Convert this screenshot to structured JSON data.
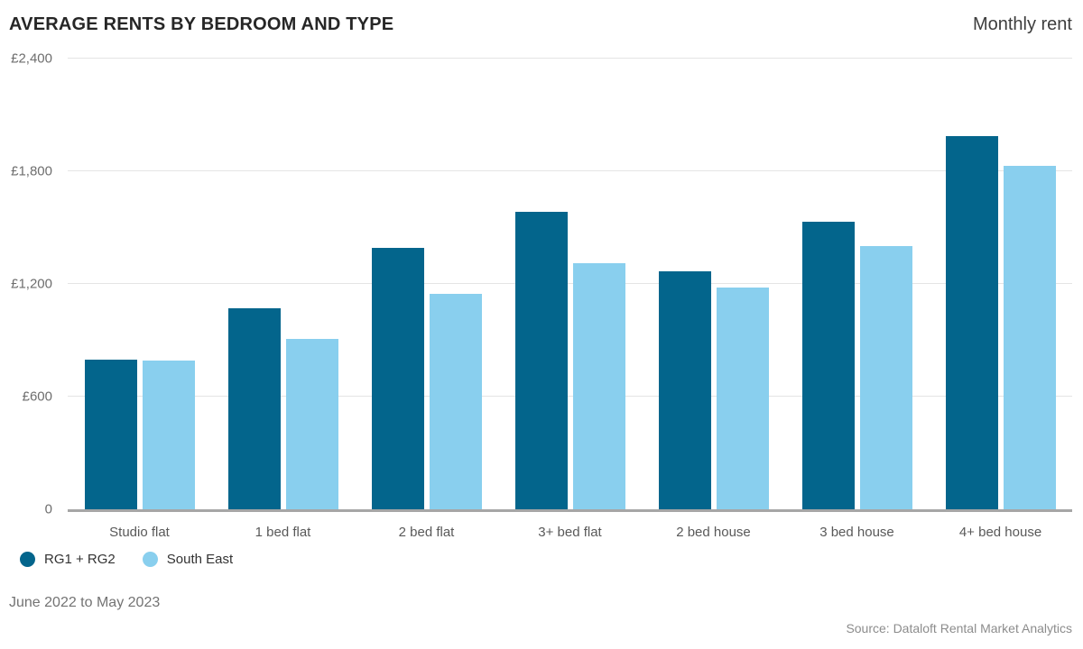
{
  "header": {
    "title": "AVERAGE RENTS BY BEDROOM AND TYPE",
    "right_label": "Monthly rent"
  },
  "footer": {
    "period": "June 2022 to May 2023",
    "source": "Source: Dataloft Rental Market Analytics"
  },
  "colors": {
    "primary": "#03658C",
    "secondary": "#89CFEE",
    "gridline": "#e4e4e4",
    "baseline": "#a6a6a6",
    "title_text": "#262626",
    "axis_text": "#6e6e6e"
  },
  "chart_data": {
    "type": "bar",
    "title": "AVERAGE RENTS BY BEDROOM AND TYPE",
    "ylabel": "Monthly rent (£)",
    "xlabel": "",
    "categories": [
      "Studio flat",
      "1 bed flat",
      "2 bed flat",
      "3+ bed flat",
      "2 bed house",
      "3 bed house",
      "4+ bed house"
    ],
    "series": [
      {
        "name": "RG1 + RG2",
        "color": "#03658C",
        "values": [
          795,
          1070,
          1390,
          1585,
          1265,
          1530,
          1985
        ]
      },
      {
        "name": "South East",
        "color": "#89CFEE",
        "values": [
          790,
          905,
          1145,
          1310,
          1180,
          1400,
          1830
        ]
      }
    ],
    "ylim": [
      0,
      2400
    ],
    "y_ticks": [
      {
        "label": "£2,400",
        "value": 2400
      },
      {
        "label": "£1,800",
        "value": 1800
      },
      {
        "label": "£1,200",
        "value": 1200
      },
      {
        "label": "£600",
        "value": 600
      },
      {
        "label": "0",
        "value": 0
      }
    ],
    "grid": true,
    "legend_position": "bottom-left"
  }
}
